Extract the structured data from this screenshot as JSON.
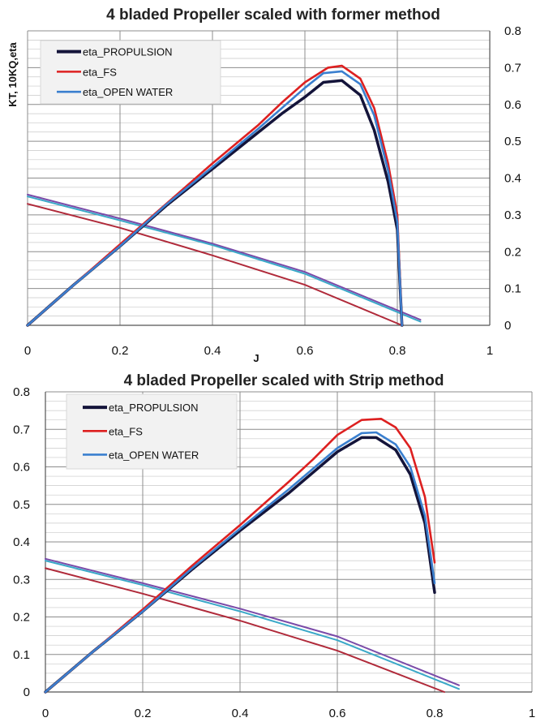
{
  "chart_data": [
    {
      "type": "line",
      "title": "4 bladed Propeller scaled with former method",
      "xlabel": "J",
      "ylabel": "KT, 10KQ,eta",
      "xlim": [
        0,
        1
      ],
      "ylim": [
        0,
        0.8
      ],
      "x_ticks": [
        "0",
        "0.2",
        "0.4",
        "0.6",
        "0.8",
        "1"
      ],
      "y_ticks": [
        "0",
        "0.1",
        "0.2",
        "0.3",
        "0.4",
        "0.5",
        "0.6",
        "0.7",
        "0.8"
      ],
      "y_axis_side": "right",
      "grid": true,
      "legend_position": "top-left",
      "series": [
        {
          "name": "eta_PROPULSION",
          "color": "#14143a",
          "role": "eta",
          "x": [
            0,
            0.05,
            0.1,
            0.2,
            0.3,
            0.4,
            0.5,
            0.55,
            0.6,
            0.64,
            0.68,
            0.72,
            0.75,
            0.78,
            0.8,
            0.81
          ],
          "y": [
            0,
            0.055,
            0.11,
            0.215,
            0.325,
            0.425,
            0.525,
            0.575,
            0.62,
            0.66,
            0.665,
            0.625,
            0.53,
            0.39,
            0.26,
            0.0
          ]
        },
        {
          "name": "eta_FS",
          "color": "#dd2020",
          "role": "eta",
          "x": [
            0,
            0.05,
            0.1,
            0.2,
            0.3,
            0.4,
            0.5,
            0.55,
            0.6,
            0.65,
            0.68,
            0.72,
            0.75,
            0.78,
            0.8,
            0.81
          ],
          "y": [
            0,
            0.055,
            0.11,
            0.22,
            0.33,
            0.44,
            0.545,
            0.605,
            0.66,
            0.7,
            0.705,
            0.67,
            0.59,
            0.44,
            0.3,
            0.0
          ]
        },
        {
          "name": "eta_OPEN WATER",
          "color": "#3a7fcf",
          "role": "eta",
          "x": [
            0,
            0.05,
            0.1,
            0.2,
            0.3,
            0.4,
            0.5,
            0.55,
            0.6,
            0.64,
            0.68,
            0.72,
            0.75,
            0.78,
            0.8,
            0.81
          ],
          "y": [
            0,
            0.055,
            0.11,
            0.215,
            0.328,
            0.43,
            0.535,
            0.59,
            0.645,
            0.685,
            0.69,
            0.655,
            0.57,
            0.42,
            0.28,
            0.0
          ]
        },
        {
          "name": "",
          "color": "#7a4aa8",
          "role": "kt",
          "x": [
            0,
            0.2,
            0.4,
            0.6,
            0.85
          ],
          "y": [
            0.355,
            0.29,
            0.222,
            0.145,
            0.015
          ]
        },
        {
          "name": "",
          "color": "#3aa8c8",
          "role": "kt",
          "x": [
            0,
            0.2,
            0.4,
            0.6,
            0.85
          ],
          "y": [
            0.35,
            0.285,
            0.218,
            0.14,
            0.01
          ]
        },
        {
          "name": "",
          "color": "#b02a3a",
          "role": "kt",
          "x": [
            0,
            0.2,
            0.4,
            0.6,
            0.81
          ],
          "y": [
            0.33,
            0.265,
            0.19,
            0.11,
            0.0
          ]
        }
      ]
    },
    {
      "type": "line",
      "title": "4 bladed Propeller scaled with Strip method",
      "xlabel": "",
      "ylabel": "",
      "xlim": [
        0,
        1
      ],
      "ylim": [
        0,
        0.8
      ],
      "x_ticks": [
        "0",
        "0.2",
        "0.4",
        "0.6",
        "0.8",
        "1"
      ],
      "y_ticks": [
        "0",
        "0.1",
        "0.2",
        "0.3",
        "0.4",
        "0.5",
        "0.6",
        "0.7",
        "0.8"
      ],
      "y_axis_side": "left",
      "grid": true,
      "legend_position": "top-left",
      "series": [
        {
          "name": "eta_PROPULSION",
          "color": "#14143a",
          "role": "eta",
          "x": [
            0,
            0.05,
            0.1,
            0.2,
            0.3,
            0.4,
            0.5,
            0.55,
            0.6,
            0.65,
            0.68,
            0.72,
            0.75,
            0.78,
            0.8
          ],
          "y": [
            0,
            0.055,
            0.11,
            0.215,
            0.325,
            0.43,
            0.53,
            0.585,
            0.64,
            0.678,
            0.678,
            0.645,
            0.58,
            0.45,
            0.265
          ]
        },
        {
          "name": "eta_FS",
          "color": "#dd2020",
          "role": "eta",
          "x": [
            0,
            0.05,
            0.1,
            0.2,
            0.3,
            0.4,
            0.5,
            0.55,
            0.6,
            0.65,
            0.69,
            0.72,
            0.75,
            0.78,
            0.8
          ],
          "y": [
            0,
            0.055,
            0.11,
            0.22,
            0.335,
            0.445,
            0.56,
            0.62,
            0.685,
            0.725,
            0.728,
            0.705,
            0.65,
            0.52,
            0.345
          ]
        },
        {
          "name": "eta_OPEN WATER",
          "color": "#3a7fcf",
          "role": "eta",
          "x": [
            0,
            0.05,
            0.1,
            0.2,
            0.3,
            0.4,
            0.5,
            0.55,
            0.6,
            0.65,
            0.68,
            0.72,
            0.75,
            0.78,
            0.8
          ],
          "y": [
            0,
            0.055,
            0.11,
            0.215,
            0.328,
            0.435,
            0.54,
            0.595,
            0.65,
            0.69,
            0.692,
            0.66,
            0.6,
            0.47,
            0.29
          ]
        },
        {
          "name": "",
          "color": "#7a4aa8",
          "role": "kt",
          "x": [
            0,
            0.2,
            0.4,
            0.6,
            0.85
          ],
          "y": [
            0.355,
            0.29,
            0.222,
            0.148,
            0.018
          ]
        },
        {
          "name": "",
          "color": "#3aa8c8",
          "role": "kt",
          "x": [
            0,
            0.2,
            0.4,
            0.6,
            0.85
          ],
          "y": [
            0.35,
            0.285,
            0.215,
            0.138,
            0.008
          ]
        },
        {
          "name": "",
          "color": "#b02a3a",
          "role": "kt",
          "x": [
            0,
            0.2,
            0.4,
            0.6,
            0.82
          ],
          "y": [
            0.33,
            0.262,
            0.19,
            0.11,
            0.0
          ]
        }
      ]
    }
  ]
}
